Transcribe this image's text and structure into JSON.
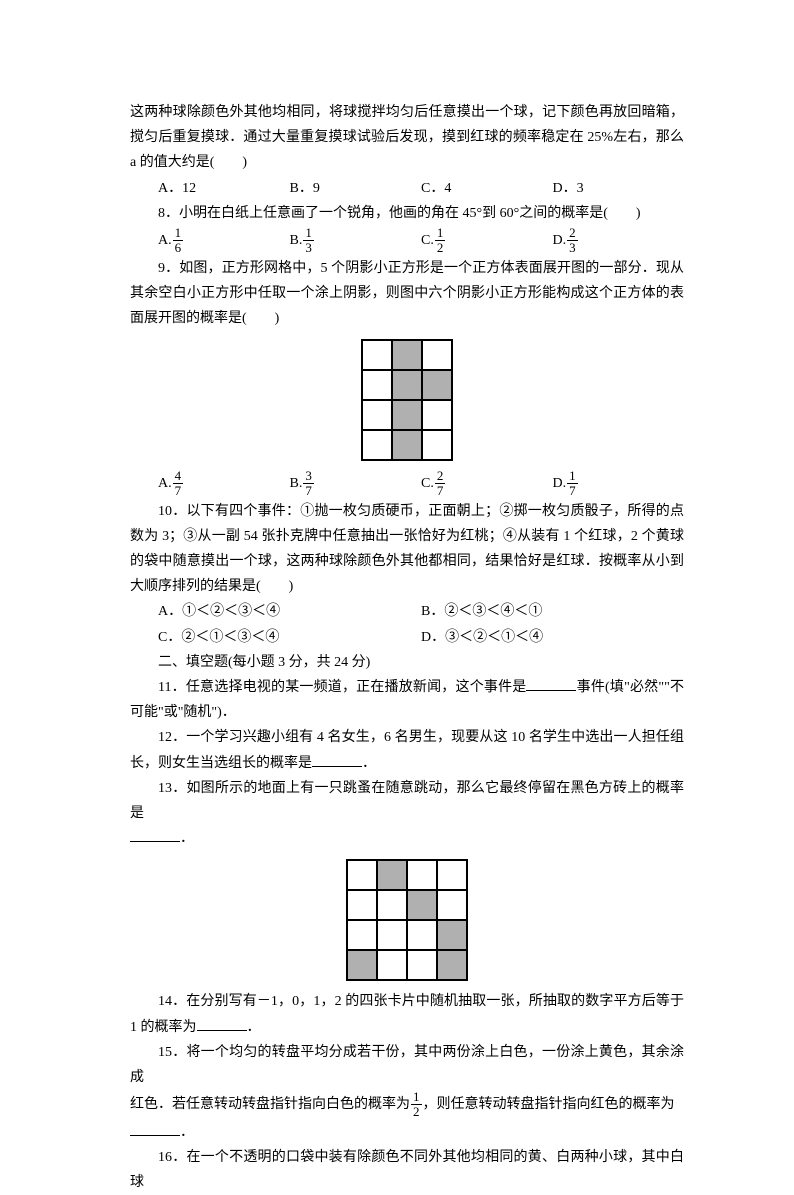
{
  "q7": {
    "intro": "这两种球除颜色外其他均相同，将球搅拌均匀后任意摸出一个球，记下颜色再放回暗箱，搅匀后重复摸球．通过大量重复摸球试验后发现，摸到红球的频率稳定在 25%左右，那么 a 的值大约是(　　)",
    "opts": [
      "A．12",
      "B．9",
      "C．4",
      "D．3"
    ]
  },
  "q8": {
    "text": "8．小明在白纸上任意画了一个锐角，他画的角在 45°到 60°之间的概率是(　　)",
    "opts": [
      {
        "label": "A.",
        "num": "1",
        "den": "6"
      },
      {
        "label": "B.",
        "num": "1",
        "den": "3"
      },
      {
        "label": "C.",
        "num": "1",
        "den": "2"
      },
      {
        "label": "D.",
        "num": "2",
        "den": "3"
      }
    ]
  },
  "q9": {
    "text": "9．如图，正方形网格中，5 个阴影小正方形是一个正方体表面展开图的一部分．现从其余空白小正方形中任取一个涂上阴影，则图中六个阴影小正方形能构成这个正方体的表面展开图的概率是(　　)",
    "grid": {
      "cols": 3,
      "rows": 4,
      "cellSize": 30,
      "shaded": [
        [
          0,
          1
        ],
        [
          1,
          1
        ],
        [
          1,
          2
        ],
        [
          2,
          1
        ],
        [
          3,
          1
        ]
      ],
      "borderColor": "#000000",
      "shadedColor": "#b0b0b0",
      "bgColor": "#ffffff"
    },
    "opts": [
      {
        "label": "A.",
        "num": "4",
        "den": "7"
      },
      {
        "label": "B.",
        "num": "3",
        "den": "7"
      },
      {
        "label": "C.",
        "num": "2",
        "den": "7"
      },
      {
        "label": "D.",
        "num": "1",
        "den": "7"
      }
    ]
  },
  "q10": {
    "text": "10．以下有四个事件：①抛一枚匀质硬币，正面朝上；②掷一枚匀质骰子，所得的点数为 3；③从一副 54 张扑克牌中任意抽出一张恰好为红桃；④从装有 1 个红球，2 个黄球的袋中随意摸出一个球，这两种球除颜色外其他都相同，结果恰好是红球．按概率从小到大顺序排列的结果是(　　)",
    "opts": [
      "A．①＜②＜③＜④",
      "B．②＜③＜④＜①",
      "C．②＜①＜③＜④",
      "D．③＜②＜①＜④"
    ]
  },
  "section2": "二、填空题(每小题 3 分，共 24 分)",
  "q11": {
    "pre": "11．任意选择电视的某一频道，正在播放新闻，这个事件是",
    "post": "事件(填\"必然\"\"不可能\"或\"随机\")．"
  },
  "q12": {
    "pre": "12．一个学习兴趣小组有 4 名女生，6 名男生，现要从这 10 名学生中选出一人担任组长，则女生当选组长的概率是",
    "post": "．"
  },
  "q13": {
    "pre": "13．如图所示的地面上有一只跳蚤在随意跳动，那么它最终停留在黑色方砖上的概率是",
    "post": "．",
    "grid": {
      "cols": 4,
      "rows": 4,
      "cellSize": 30,
      "shaded": [
        [
          0,
          1
        ],
        [
          1,
          2
        ],
        [
          2,
          3
        ],
        [
          3,
          0
        ],
        [
          3,
          3
        ]
      ],
      "borderColor": "#000000",
      "shadedColor": "#b0b0b0",
      "bgColor": "#ffffff"
    }
  },
  "q14": {
    "pre": "14．在分别写有－1，0，1，2 的四张卡片中随机抽取一张，所抽取的数字平方后等于 1 的概率为",
    "post": "．"
  },
  "q15": {
    "line1": "15．将一个均匀的转盘平均分成若干份，其中两份涂上白色，一份涂上黄色，其余涂成",
    "line2a": "红色．若任意转动转盘指针指向白色的概率为",
    "frac": {
      "num": "1",
      "den": "2"
    },
    "line2b": "，则任意转动转盘指针指向红色的概率为",
    "post": "．"
  },
  "q16": {
    "text": "16．在一个不透明的口袋中装有除颜色不同外其他均相同的黄、白两种小球，其中白球"
  }
}
